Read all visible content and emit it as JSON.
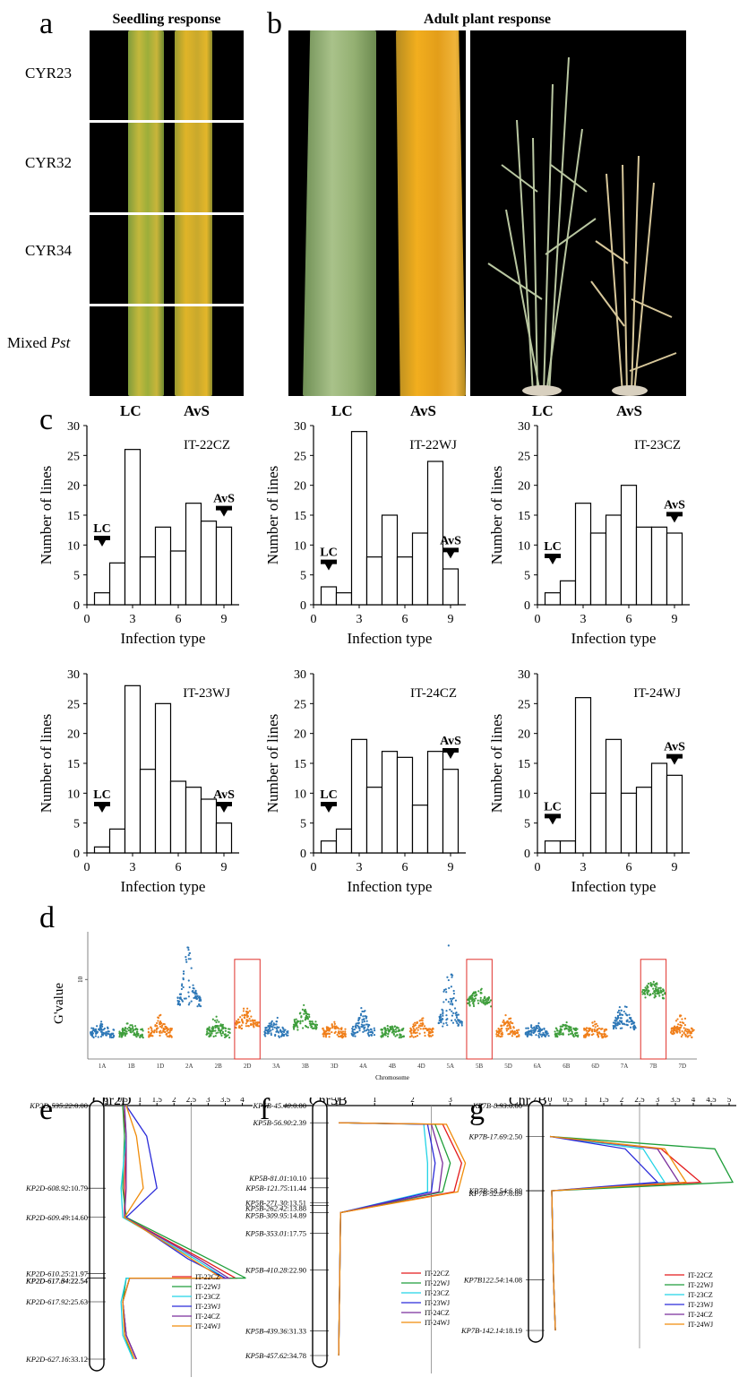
{
  "panels": {
    "a": "a",
    "b": "b",
    "c": "c",
    "d": "d",
    "e": "e",
    "f": "f",
    "g": "g"
  },
  "panel_a": {
    "header": "Seedling response",
    "rows": [
      "CYR23",
      "CYR32",
      "CYR34",
      "Mixed "
    ],
    "mixed_italic": "Pst",
    "bottom_labels": [
      "LC",
      "AvS"
    ]
  },
  "panel_b": {
    "header": "Adult plant response",
    "bottom_labels_left": [
      "LC",
      "AvS"
    ],
    "bottom_labels_right": [
      "LC",
      "AvS"
    ]
  },
  "histograms": {
    "ylabel": "Number of lines",
    "xlabel": "Infection type",
    "yticks": [
      "0",
      "5",
      "10",
      "15",
      "20",
      "25",
      "30"
    ],
    "xticks": [
      "0",
      "3",
      "6",
      "9"
    ],
    "lc_label": "LC",
    "avs_label": "AvS"
  },
  "panel_d": {
    "ylabel": "G'value",
    "xlabel": "Chromosome",
    "ytick_label": "10",
    "chromosomes": [
      "1A",
      "1B",
      "1D",
      "2A",
      "2B",
      "2D",
      "3A",
      "3B",
      "3D",
      "4A",
      "4B",
      "4D",
      "5A",
      "5B",
      "5D",
      "6A",
      "6B",
      "6D",
      "7A",
      "7B",
      "7D"
    ]
  },
  "lod": {
    "axis_title": "LOD Score",
    "e": {
      "title": "Chr2D",
      "ticks": [
        "0",
        "0.5",
        "1",
        "1.5",
        "2",
        "2.5",
        "3",
        "3.5",
        "4"
      ]
    },
    "f": {
      "title": "Chr5B",
      "ticks": [
        "0",
        "1",
        "2",
        "3"
      ]
    },
    "g": {
      "title": "Chr7B",
      "ticks": [
        "0",
        "0.5",
        "1",
        "1.5",
        "2",
        "2.5",
        "3",
        "3.5",
        "4",
        "4.5",
        "5"
      ]
    },
    "legend": [
      "IT-22CZ",
      "IT-22WJ",
      "IT-23CZ",
      "IT-23WJ",
      "IT-24CZ",
      "IT-24WJ"
    ],
    "legend_colors": [
      "#e31a1c",
      "#1f9e3a",
      "#22d3e6",
      "#2b2bd9",
      "#7b2e9c",
      "#f08c0a"
    ],
    "e_markers": [
      "KP2D-535.22",
      "KP2D-608.92",
      "KP2D-609.49",
      "KP2D-610.25",
      "KP2D-617.34",
      "KP2D-617.64",
      "KP2D-617.92",
      "KP2D-627.16"
    ],
    "e_pos": [
      ":0.00",
      ":10.79",
      ":14.60",
      ":21.97",
      ":22.54",
      ":22.54",
      ":25.63",
      ":33.12"
    ],
    "f_markers": [
      "KP5B-45.40",
      "KP5B-56.90",
      "KP5B-81.01",
      "KP5B-121.75",
      "KP5B-271.30",
      "KP5B-262.42",
      "KP5B-309.95",
      "KP5B-353.01",
      "KP5B-410.28",
      "KP5B-439.36",
      "KP5B-457.62"
    ],
    "f_pos": [
      ":0.00",
      ":2.39",
      ":10.10",
      ":11.44",
      ":13.51",
      ":13.88",
      ":14.89",
      ":17.75",
      ":22.90",
      ":31.33",
      ":34.78"
    ],
    "g_markers": [
      "KP7B-8.93",
      "KP7B-17.69",
      "KP7B-58.54",
      "KP7B-52.87",
      "KP7B122.54",
      "KP7B-142.14"
    ],
    "g_pos": [
      ":0.00",
      ":2.50",
      ":6.89",
      ":6.89",
      ":14.08",
      ":18.19"
    ]
  },
  "chart_data": [
    {
      "type": "bar",
      "title": "IT-22CZ",
      "xlabel": "Infection type",
      "ylabel": "Number of lines",
      "categories": [
        "1",
        "2",
        "3",
        "4",
        "5",
        "6",
        "7",
        "8",
        "9"
      ],
      "values": [
        2,
        7,
        26,
        8,
        13,
        9,
        17,
        14,
        13
      ],
      "ylim": [
        0,
        30
      ],
      "xlim": [
        0,
        10
      ],
      "lc_arrow": 1,
      "avs_arrow": 9
    },
    {
      "type": "bar",
      "title": "IT-22WJ",
      "xlabel": "Infection type",
      "ylabel": "Number of lines",
      "categories": [
        "1",
        "2",
        "3",
        "4",
        "5",
        "6",
        "7",
        "8",
        "9"
      ],
      "values": [
        3,
        2,
        29,
        8,
        15,
        8,
        12,
        24,
        6
      ],
      "ylim": [
        0,
        30
      ],
      "xlim": [
        0,
        10
      ],
      "lc_arrow": 1,
      "avs_arrow": 9
    },
    {
      "type": "bar",
      "title": "IT-23CZ",
      "xlabel": "Infection type",
      "ylabel": "Number of lines",
      "categories": [
        "1",
        "2",
        "3",
        "4",
        "5",
        "6",
        "7",
        "8",
        "9"
      ],
      "values": [
        2,
        4,
        17,
        12,
        15,
        20,
        13,
        13,
        12
      ],
      "ylim": [
        0,
        30
      ],
      "xlim": [
        0,
        10
      ],
      "lc_arrow": 1,
      "avs_arrow": 9
    },
    {
      "type": "bar",
      "title": "IT-23WJ",
      "xlabel": "Infection type",
      "ylabel": "Number of lines",
      "categories": [
        "1",
        "2",
        "3",
        "4",
        "5",
        "6",
        "7",
        "8",
        "9"
      ],
      "values": [
        1,
        4,
        28,
        14,
        25,
        12,
        11,
        9,
        5
      ],
      "ylim": [
        0,
        30
      ],
      "xlim": [
        0,
        10
      ],
      "lc_arrow": 1,
      "avs_arrow": 9
    },
    {
      "type": "bar",
      "title": "IT-24CZ",
      "xlabel": "Infection type",
      "ylabel": "Number of lines",
      "categories": [
        "1",
        "2",
        "3",
        "4",
        "5",
        "6",
        "7",
        "8",
        "9"
      ],
      "values": [
        2,
        4,
        19,
        11,
        17,
        16,
        8,
        17,
        14
      ],
      "ylim": [
        0,
        30
      ],
      "xlim": [
        0,
        10
      ],
      "lc_arrow": 1,
      "avs_arrow": 9
    },
    {
      "type": "bar",
      "title": "IT-24WJ",
      "xlabel": "Infection type",
      "ylabel": "Number of lines",
      "categories": [
        "1",
        "2",
        "3",
        "4",
        "5",
        "6",
        "7",
        "8",
        "9"
      ],
      "values": [
        2,
        2,
        26,
        10,
        19,
        10,
        11,
        15,
        13
      ],
      "ylim": [
        0,
        30
      ],
      "xlim": [
        0,
        10
      ],
      "lc_arrow": 1,
      "avs_arrow": 9
    },
    {
      "type": "scatter",
      "title": "",
      "xlabel": "Chromosome",
      "ylabel": "G'value",
      "categories": [
        "1A",
        "1B",
        "1D",
        "2A",
        "2B",
        "2D",
        "3A",
        "3B",
        "3D",
        "4A",
        "4B",
        "4D",
        "5A",
        "5B",
        "5D",
        "6A",
        "6B",
        "6D",
        "7A",
        "7B",
        "7D"
      ],
      "base_level": [
        3,
        3,
        3,
        7,
        3,
        4,
        3,
        4,
        3,
        3,
        3,
        3,
        4,
        7,
        3,
        3,
        3,
        3,
        4,
        8,
        3
      ],
      "peak_level": [
        4,
        4,
        5,
        14,
        5,
        6,
        5,
        6,
        4,
        6,
        4,
        5,
        14,
        9,
        5,
        4,
        4,
        4,
        7,
        10,
        5
      ],
      "highlighted": [
        "2D",
        "5B",
        "7B"
      ],
      "series_colors": [
        "#2e78b7",
        "#3f9e3c",
        "#f07f1a"
      ]
    },
    {
      "type": "line",
      "title": "Chr2D",
      "xlabel": "LOD Score",
      "series": [
        {
          "name": "IT-22CZ",
          "x": [
            0.5,
            0.6,
            0.55,
            0.55,
            2.8,
            3.8,
            0.7,
            0.5,
            0.6,
            0.9
          ],
          "y": [
            0,
            4,
            10.79,
            14.6,
            20,
            22.54,
            22.54,
            25.63,
            30,
            33.12
          ]
        },
        {
          "name": "IT-22WJ",
          "x": [
            0.5,
            0.55,
            0.5,
            0.6,
            3.0,
            4.1,
            0.6,
            0.5,
            0.55,
            0.8
          ],
          "y": [
            0,
            4,
            10.79,
            14.6,
            20,
            22.54,
            22.54,
            25.63,
            30,
            33.12
          ]
        },
        {
          "name": "IT-23CZ",
          "x": [
            0.55,
            0.6,
            0.45,
            0.5,
            2.6,
            3.5,
            0.6,
            0.45,
            0.5,
            0.8
          ],
          "y": [
            0,
            4,
            10.79,
            14.6,
            20,
            22.54,
            22.54,
            25.63,
            30,
            33.12
          ]
        },
        {
          "name": "IT-23WJ",
          "x": [
            0.6,
            1.2,
            1.5,
            0.6,
            2.4,
            3.5,
            0.7,
            0.5,
            0.6,
            0.9
          ],
          "y": [
            0,
            4,
            10.79,
            14.6,
            20,
            22.54,
            22.54,
            25.63,
            30,
            33.12
          ]
        },
        {
          "name": "IT-24CZ",
          "x": [
            0.55,
            0.6,
            0.6,
            0.55,
            2.7,
            3.6,
            0.7,
            0.5,
            0.6,
            0.9
          ],
          "y": [
            0,
            4,
            10.79,
            14.6,
            20,
            22.54,
            22.54,
            25.63,
            30,
            33.12
          ]
        },
        {
          "name": "IT-24WJ",
          "x": [
            0.6,
            0.9,
            1.1,
            0.55,
            2.5,
            3.4,
            0.7,
            0.5,
            0.55,
            0.85
          ],
          "y": [
            0,
            4,
            10.79,
            14.6,
            20,
            22.54,
            22.54,
            25.63,
            30,
            33.12
          ]
        }
      ]
    },
    {
      "type": "line",
      "title": "Chr5B",
      "xlabel": "LOD Score",
      "series": [
        {
          "name": "IT-22CZ",
          "x": [
            0.05,
            2.8,
            3.3,
            3.1,
            0.1,
            0.05
          ],
          "y": [
            2.39,
            2.6,
            8,
            12,
            14.89,
            34.78
          ]
        },
        {
          "name": "IT-22WJ",
          "x": [
            0.05,
            2.6,
            3.0,
            2.8,
            0.1,
            0.05
          ],
          "y": [
            2.39,
            2.6,
            8,
            12,
            14.89,
            34.78
          ]
        },
        {
          "name": "IT-23CZ",
          "x": [
            0.05,
            2.3,
            2.4,
            2.4,
            0.1,
            0.05
          ],
          "y": [
            2.39,
            2.6,
            8,
            12,
            14.89,
            34.78
          ]
        },
        {
          "name": "IT-23WJ",
          "x": [
            0.05,
            2.4,
            2.6,
            2.5,
            0.1,
            0.05
          ],
          "y": [
            2.39,
            2.6,
            8,
            12,
            14.89,
            34.78
          ]
        },
        {
          "name": "IT-24CZ",
          "x": [
            0.05,
            2.5,
            2.8,
            2.7,
            0.1,
            0.05
          ],
          "y": [
            2.39,
            2.6,
            8,
            12,
            14.89,
            34.78
          ]
        },
        {
          "name": "IT-24WJ",
          "x": [
            0.05,
            2.9,
            3.4,
            3.2,
            0.1,
            0.05
          ],
          "y": [
            2.39,
            2.6,
            8,
            12,
            14.89,
            34.78
          ]
        }
      ]
    },
    {
      "type": "line",
      "title": "Chr7B",
      "xlabel": "LOD Score",
      "series": [
        {
          "name": "IT-22CZ",
          "x": [
            0,
            3.1,
            4.2,
            0.05,
            0.1,
            0.15
          ],
          "y": [
            2.5,
            3.5,
            6.2,
            6.89,
            14.08,
            18.19
          ]
        },
        {
          "name": "IT-22WJ",
          "x": [
            0,
            4.6,
            5.1,
            0.05,
            0.1,
            0.15
          ],
          "y": [
            2.5,
            3.5,
            6.2,
            6.89,
            14.08,
            18.19
          ]
        },
        {
          "name": "IT-23CZ",
          "x": [
            0,
            2.6,
            3.2,
            0.05,
            0.1,
            0.15
          ],
          "y": [
            2.5,
            3.5,
            6.2,
            6.89,
            14.08,
            18.19
          ]
        },
        {
          "name": "IT-23WJ",
          "x": [
            0,
            2.1,
            3.0,
            0.05,
            0.1,
            0.15
          ],
          "y": [
            2.5,
            3.5,
            6.2,
            6.89,
            14.08,
            18.19
          ]
        },
        {
          "name": "IT-24CZ",
          "x": [
            0,
            3.0,
            3.6,
            0.05,
            0.1,
            0.15
          ],
          "y": [
            2.5,
            3.5,
            6.2,
            6.89,
            14.08,
            18.19
          ]
        },
        {
          "name": "IT-24WJ",
          "x": [
            0,
            3.2,
            3.8,
            0.05,
            0.1,
            0.15
          ],
          "y": [
            2.5,
            3.5,
            6.2,
            6.89,
            14.08,
            18.19
          ]
        }
      ]
    }
  ]
}
